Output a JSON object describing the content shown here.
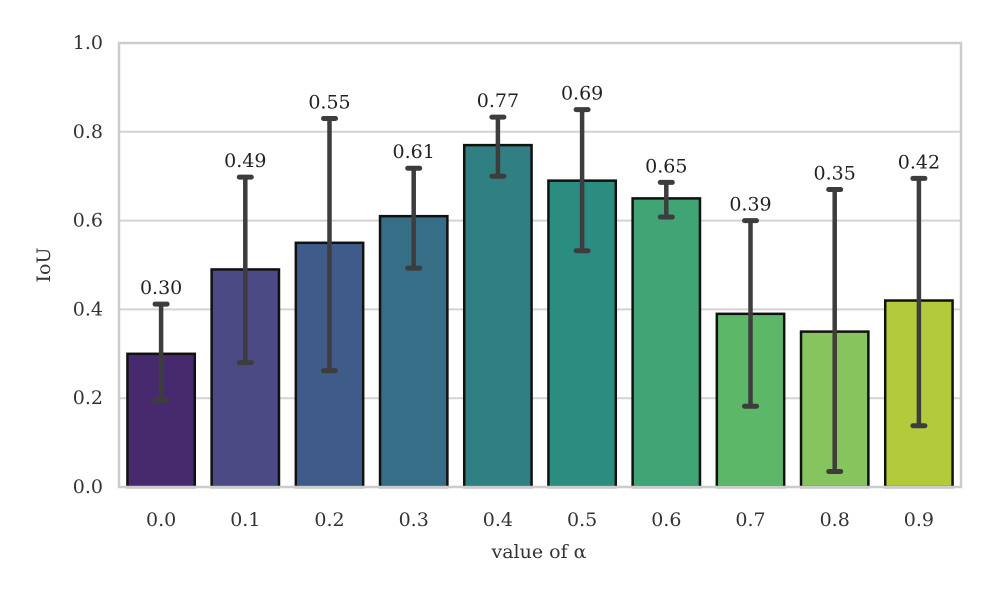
{
  "chart_data": {
    "type": "bar",
    "title": "",
    "xlabel": "value of α",
    "ylabel": "IoU",
    "ylim": [
      0.0,
      1.0
    ],
    "yticks": [
      0.0,
      0.2,
      0.4,
      0.6,
      0.8,
      1.0
    ],
    "ytick_labels": [
      "0.0",
      "0.2",
      "0.4",
      "0.6",
      "0.8",
      "1.0"
    ],
    "grid": true,
    "categories": [
      "0.0",
      "0.1",
      "0.2",
      "0.3",
      "0.4",
      "0.5",
      "0.6",
      "0.7",
      "0.8",
      "0.9"
    ],
    "values": [
      0.3,
      0.49,
      0.55,
      0.61,
      0.77,
      0.69,
      0.65,
      0.39,
      0.35,
      0.42
    ],
    "value_labels": [
      "0.30",
      "0.49",
      "0.55",
      "0.61",
      "0.77",
      "0.69",
      "0.65",
      "0.39",
      "0.35",
      "0.42"
    ],
    "error_low": [
      0.195,
      0.28,
      0.262,
      0.493,
      0.7,
      0.532,
      0.608,
      0.182,
      0.035,
      0.138
    ],
    "error_high": [
      0.412,
      0.698,
      0.83,
      0.718,
      0.833,
      0.85,
      0.686,
      0.6,
      0.67,
      0.695
    ],
    "colors": [
      "#472a6e",
      "#4b4a84",
      "#3f5b89",
      "#376e87",
      "#2f7f83",
      "#2b8d7f",
      "#40a474",
      "#5db769",
      "#86c55d",
      "#b3ca3a"
    ]
  }
}
